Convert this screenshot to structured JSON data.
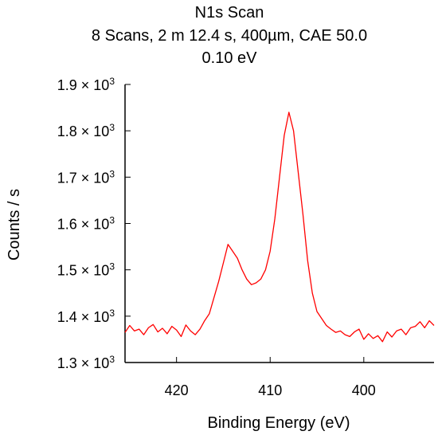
{
  "chart_data": {
    "type": "line",
    "title": "N1s Scan",
    "subtitle_lines": [
      "8 Scans,  2 m 12.4 s,  400µm,  CAE 50.0",
      "0.10 eV"
    ],
    "xlabel": "Binding Energy (eV)",
    "ylabel": "Counts / s",
    "x_reversed": true,
    "xlim": [
      425.5,
      392.5
    ],
    "ylim": [
      1300,
      1900
    ],
    "grid": false,
    "line_color": "#ff0000",
    "x_ticks": [
      {
        "value": 420,
        "label": "420"
      },
      {
        "value": 410,
        "label": "410"
      },
      {
        "value": 400,
        "label": "400"
      }
    ],
    "y_ticks": [
      {
        "value": 1300,
        "mant": "1.3",
        "exp": "3"
      },
      {
        "value": 1400,
        "mant": "1.4",
        "exp": "3"
      },
      {
        "value": 1500,
        "mant": "1.5",
        "exp": "3"
      },
      {
        "value": 1600,
        "mant": "1.6",
        "exp": "3"
      },
      {
        "value": 1700,
        "mant": "1.7",
        "exp": "3"
      },
      {
        "value": 1800,
        "mant": "1.8",
        "exp": "3"
      },
      {
        "value": 1900,
        "mant": "1.9",
        "exp": "3"
      }
    ],
    "times_sign": "×",
    "base": "10",
    "series": [
      {
        "x": [
          425.5,
          425.0,
          424.5,
          424.0,
          423.5,
          423.0,
          422.5,
          422.0,
          421.5,
          421.0,
          420.5,
          420.0,
          419.5,
          419.0,
          418.5,
          418.0,
          417.5,
          417.0,
          416.5,
          416.0,
          415.5,
          415.0,
          414.5,
          414.0,
          413.5,
          413.0,
          412.5,
          412.0,
          411.5,
          411.0,
          410.5,
          410.0,
          409.5,
          409.0,
          408.5,
          408.0,
          407.5,
          407.0,
          406.5,
          406.0,
          405.5,
          405.0,
          404.5,
          404.0,
          403.5,
          403.0,
          402.5,
          402.0,
          401.5,
          401.0,
          400.5,
          400.0,
          399.5,
          399.0,
          398.5,
          398.0,
          397.5,
          397.0,
          396.5,
          396.0,
          395.5,
          395.0,
          394.5,
          394.0,
          393.5,
          393.0,
          392.5
        ],
        "y": [
          1365,
          1380,
          1368,
          1372,
          1360,
          1375,
          1382,
          1366,
          1374,
          1362,
          1378,
          1370,
          1356,
          1381,
          1368,
          1360,
          1372,
          1390,
          1405,
          1440,
          1475,
          1515,
          1555,
          1540,
          1525,
          1500,
          1480,
          1468,
          1472,
          1480,
          1500,
          1540,
          1610,
          1700,
          1790,
          1840,
          1800,
          1710,
          1620,
          1520,
          1450,
          1410,
          1395,
          1380,
          1372,
          1365,
          1368,
          1360,
          1356,
          1366,
          1372,
          1350,
          1362,
          1352,
          1358,
          1345,
          1366,
          1355,
          1368,
          1372,
          1360,
          1375,
          1378,
          1388,
          1375,
          1390,
          1380
        ]
      }
    ]
  }
}
